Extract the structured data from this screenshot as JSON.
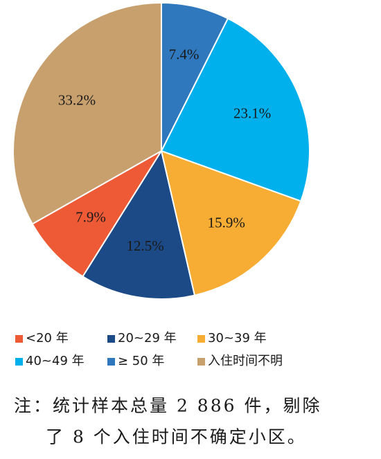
{
  "chart_data": {
    "type": "pie",
    "categories": [
      "<20 年",
      "20~29 年",
      "30~39 年",
      "40~49 年",
      "≥ 50 年",
      "入住时间不明"
    ],
    "values": [
      7.9,
      12.5,
      15.9,
      23.1,
      7.4,
      33.2
    ],
    "value_labels": [
      "7.9%",
      "12.5%",
      "15.9%",
      "23.1%",
      "7.4%",
      "33.2%"
    ],
    "colors": [
      "#ee5a35",
      "#1c4a87",
      "#f7ac33",
      "#00b0ec",
      "#2f78be",
      "#c8a06e"
    ],
    "note": [
      "注：统计样本总量 2 886 件，剔除",
      "了 8 个入住时间不确定小区。"
    ]
  }
}
